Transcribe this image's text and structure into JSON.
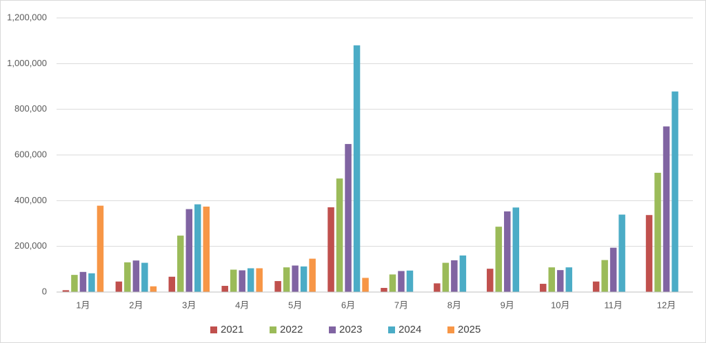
{
  "chart_data": {
    "type": "bar",
    "categories": [
      "1月",
      "2月",
      "3月",
      "4月",
      "5月",
      "6月",
      "7月",
      "8月",
      "9月",
      "10月",
      "11月",
      "12月"
    ],
    "series": [
      {
        "name": "2021",
        "color": "#c0504d",
        "values": [
          8000,
          46000,
          67000,
          27000,
          48000,
          371000,
          18000,
          38000,
          102000,
          36000,
          46000,
          337000
        ]
      },
      {
        "name": "2022",
        "color": "#9bbb59",
        "values": [
          75000,
          130000,
          247000,
          98000,
          108000,
          497000,
          77000,
          128000,
          286000,
          108000,
          140000,
          522000
        ]
      },
      {
        "name": "2023",
        "color": "#8064a2",
        "values": [
          88000,
          138000,
          363000,
          95000,
          116000,
          648000,
          92000,
          139000,
          353000,
          96000,
          194000,
          725000
        ]
      },
      {
        "name": "2024",
        "color": "#4bacc6",
        "values": [
          82000,
          128000,
          384000,
          104000,
          112000,
          1080000,
          94000,
          160000,
          370000,
          108000,
          339000,
          878000
        ]
      },
      {
        "name": "2025",
        "color": "#f79646",
        "values": [
          378000,
          25000,
          374000,
          104000,
          146000,
          62000,
          null,
          null,
          null,
          null,
          null,
          null
        ]
      }
    ],
    "ylim": [
      0,
      1200000
    ],
    "yticks": [
      0,
      {
        "value": 200000,
        "label": "200,000"
      },
      {
        "value": 400000,
        "label": "400,000"
      },
      {
        "value": 600000,
        "label": "600,000"
      },
      {
        "value": 800000,
        "label": "800,000"
      },
      {
        "value": 1000000,
        "label": "1,000,000"
      },
      {
        "value": 1200000,
        "label": "1,200,000"
      }
    ],
    "grid": true,
    "legend": "bottom"
  }
}
